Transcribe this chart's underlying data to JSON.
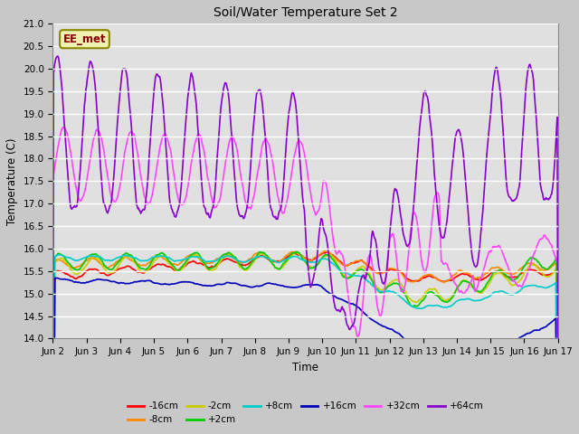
{
  "title": "Soil/Water Temperature Set 2",
  "xlabel": "Time",
  "ylabel": "Temperature (C)",
  "ylim": [
    14.0,
    21.0
  ],
  "yticks": [
    14.0,
    14.5,
    15.0,
    15.5,
    16.0,
    16.5,
    17.0,
    17.5,
    18.0,
    18.5,
    19.0,
    19.5,
    20.0,
    20.5,
    21.0
  ],
  "xtick_labels": [
    "Jun 2",
    "Jun 3",
    "Jun 4",
    "Jun 5",
    "Jun 6",
    "Jun 7",
    "Jun 8",
    "Jun 9",
    "Jun 10",
    "Jun 11",
    "Jun 12",
    "Jun 13",
    "Jun 14",
    "Jun 15",
    "Jun 16",
    "Jun 17"
  ],
  "bg_color": "#e8e8e8",
  "grid_color": "#ffffff",
  "series": {
    "-16cm": {
      "color": "#ff0000",
      "lw": 1.2
    },
    "-8cm": {
      "color": "#ff8800",
      "lw": 1.2
    },
    "-2cm": {
      "color": "#cccc00",
      "lw": 1.2
    },
    "+2cm": {
      "color": "#00cc00",
      "lw": 1.2
    },
    "+8cm": {
      "color": "#00cccc",
      "lw": 1.2
    },
    "+16cm": {
      "color": "#0000bb",
      "lw": 1.2
    },
    "+32cm": {
      "color": "#ff44ff",
      "lw": 1.2
    },
    "+64cm": {
      "color": "#8800cc",
      "lw": 1.2
    }
  },
  "annotation_text": "EE_met",
  "n_points": 720,
  "figsize": [
    6.4,
    4.8
  ],
  "dpi": 100
}
